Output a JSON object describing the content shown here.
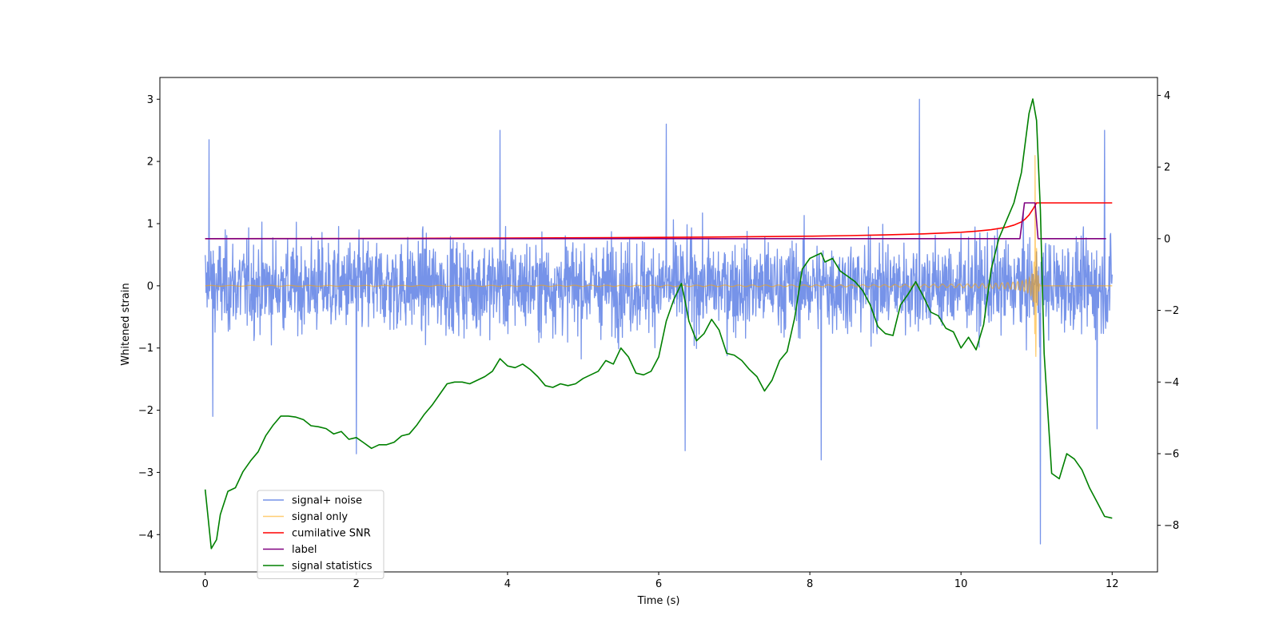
{
  "chart_data": {
    "type": "line",
    "title": "",
    "xlabel": "Time (s)",
    "ylabel": "Whitened strain",
    "ylabel_right": "",
    "xlim": [
      -0.6,
      12.6
    ],
    "ylim": [
      -4.6,
      3.35
    ],
    "ylim_right": [
      -9.3,
      4.5
    ],
    "x_ticks": [
      0,
      2,
      4,
      6,
      8,
      10,
      12
    ],
    "x_tick_labels": [
      "0",
      "2",
      "4",
      "6",
      "8",
      "10",
      "12"
    ],
    "y_ticks": [
      -4,
      -3,
      -2,
      -1,
      0,
      1,
      2,
      3
    ],
    "y_tick_labels": [
      "−4",
      "−3",
      "−2",
      "−1",
      "0",
      "1",
      "2",
      "3"
    ],
    "y_right_ticks": [
      -8,
      -6,
      -4,
      -2,
      0,
      2,
      4
    ],
    "y_right_tick_labels": [
      "−8",
      "−6",
      "−4",
      "−2",
      "0",
      "2",
      "4"
    ],
    "legend": {
      "position": "lower-left",
      "entries": [
        "signal+ noise",
        "signal only",
        "cumilative SNR",
        "label",
        "signal statistics"
      ]
    },
    "series": [
      {
        "name": "signal+ noise",
        "axis": "left",
        "color": "#4169e1",
        "opacity": 0.72,
        "style": "dense-noise",
        "x_range": [
          0,
          12
        ],
        "spread": 1.25,
        "peaks": [
          [
            0.05,
            2.35
          ],
          [
            3.9,
            2.5
          ],
          [
            6.1,
            2.6
          ],
          [
            9.45,
            3.0
          ],
          [
            11.9,
            2.5
          ],
          [
            0.1,
            -2.1
          ],
          [
            2.0,
            -2.7
          ],
          [
            6.35,
            -2.65
          ],
          [
            8.15,
            -2.8
          ],
          [
            11.05,
            -4.15
          ],
          [
            11.8,
            -2.3
          ]
        ]
      },
      {
        "name": "signal only",
        "axis": "left",
        "color": "#ffa500",
        "opacity": 0.55,
        "style": "chirp",
        "x_range": [
          0,
          12
        ],
        "merger_time": 10.98,
        "peak_amplitude": 2.1
      },
      {
        "name": "cumilative SNR",
        "axis": "right",
        "color": "#ff0000",
        "x": [
          0,
          1,
          2,
          3,
          4,
          5,
          6,
          7,
          8,
          8.5,
          9,
          9.5,
          10,
          10.2,
          10.4,
          10.6,
          10.7,
          10.8,
          10.85,
          10.9,
          10.95,
          11.0,
          11.05,
          12.0
        ],
        "values": [
          0,
          0.003,
          0.007,
          0.012,
          0.018,
          0.026,
          0.036,
          0.05,
          0.07,
          0.085,
          0.105,
          0.135,
          0.18,
          0.21,
          0.25,
          0.32,
          0.38,
          0.47,
          0.55,
          0.66,
          0.82,
          1.0,
          1.0,
          1.0
        ]
      },
      {
        "name": "label",
        "axis": "right",
        "color": "#800080",
        "x": [
          0,
          10.78,
          10.84,
          10.98,
          11.02,
          11.92
        ],
        "values": [
          0,
          0,
          1.0,
          1.0,
          0,
          0
        ]
      },
      {
        "name": "signal statistics",
        "axis": "right",
        "color": "#008000",
        "x": [
          0,
          0.08,
          0.15,
          0.2,
          0.3,
          0.4,
          0.5,
          0.6,
          0.7,
          0.8,
          0.9,
          1.0,
          1.1,
          1.2,
          1.3,
          1.4,
          1.5,
          1.6,
          1.7,
          1.8,
          1.9,
          2.0,
          2.1,
          2.2,
          2.3,
          2.4,
          2.5,
          2.6,
          2.7,
          2.8,
          2.9,
          3.0,
          3.1,
          3.2,
          3.3,
          3.4,
          3.5,
          3.6,
          3.7,
          3.8,
          3.9,
          4.0,
          4.1,
          4.2,
          4.3,
          4.4,
          4.5,
          4.6,
          4.7,
          4.8,
          4.9,
          5.0,
          5.1,
          5.2,
          5.3,
          5.4,
          5.5,
          5.6,
          5.7,
          5.8,
          5.9,
          6.0,
          6.1,
          6.2,
          6.3,
          6.35,
          6.4,
          6.5,
          6.6,
          6.7,
          6.8,
          6.9,
          7.0,
          7.1,
          7.2,
          7.3,
          7.4,
          7.5,
          7.6,
          7.7,
          7.8,
          7.9,
          8.0,
          8.1,
          8.15,
          8.2,
          8.3,
          8.4,
          8.5,
          8.6,
          8.7,
          8.8,
          8.9,
          9.0,
          9.1,
          9.2,
          9.3,
          9.4,
          9.5,
          9.6,
          9.7,
          9.8,
          9.9,
          10.0,
          10.1,
          10.2,
          10.3,
          10.4,
          10.5,
          10.6,
          10.7,
          10.8,
          10.9,
          10.95,
          11.0,
          11.05,
          11.1,
          11.2,
          11.3,
          11.4,
          11.5,
          11.6,
          11.7,
          11.8,
          11.9,
          12.0
        ],
        "values": [
          -7.0,
          -8.65,
          -8.4,
          -7.7,
          -7.05,
          -6.95,
          -6.5,
          -6.2,
          -5.95,
          -5.5,
          -5.2,
          -4.95,
          -4.95,
          -4.98,
          -5.05,
          -5.22,
          -5.25,
          -5.3,
          -5.45,
          -5.38,
          -5.6,
          -5.55,
          -5.7,
          -5.85,
          -5.75,
          -5.75,
          -5.68,
          -5.5,
          -5.45,
          -5.2,
          -4.9,
          -4.65,
          -4.35,
          -4.05,
          -4.0,
          -4.0,
          -4.05,
          -3.95,
          -3.85,
          -3.7,
          -3.35,
          -3.55,
          -3.6,
          -3.5,
          -3.65,
          -3.85,
          -4.1,
          -4.15,
          -4.05,
          -4.1,
          -4.05,
          -3.9,
          -3.8,
          -3.7,
          -3.4,
          -3.5,
          -3.05,
          -3.3,
          -3.75,
          -3.8,
          -3.7,
          -3.3,
          -2.3,
          -1.7,
          -1.25,
          -1.75,
          -2.3,
          -2.85,
          -2.65,
          -2.25,
          -2.55,
          -3.2,
          -3.25,
          -3.4,
          -3.65,
          -3.85,
          -4.25,
          -3.95,
          -3.4,
          -3.15,
          -2.2,
          -0.85,
          -0.55,
          -0.45,
          -0.4,
          -0.65,
          -0.55,
          -0.9,
          -1.05,
          -1.2,
          -1.45,
          -1.85,
          -2.45,
          -2.65,
          -2.7,
          -1.85,
          -1.55,
          -1.2,
          -1.6,
          -2.05,
          -2.15,
          -2.5,
          -2.6,
          -3.05,
          -2.75,
          -3.1,
          -2.4,
          -0.85,
          0.0,
          0.5,
          1.0,
          1.85,
          3.5,
          3.9,
          3.3,
          0.8,
          -3.2,
          -6.55,
          -6.7,
          -6.0,
          -6.15,
          -6.45,
          -6.95,
          -7.35,
          -7.75,
          -7.8
        ]
      }
    ]
  }
}
